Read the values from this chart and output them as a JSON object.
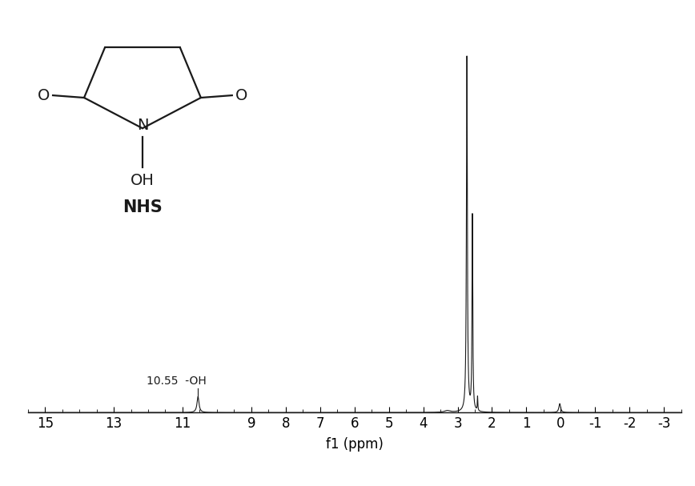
{
  "xlim": [
    15.5,
    -3.5
  ],
  "ylim": [
    -0.07,
    1.12
  ],
  "xlabel": "f1 (ppm)",
  "xticks": [
    15,
    13,
    11,
    9,
    8,
    7,
    6,
    5,
    4,
    3,
    2,
    1,
    0,
    -1,
    -2,
    -3
  ],
  "xtick_labels": [
    "15",
    "13",
    "11",
    "9",
    "8",
    "7",
    "6",
    "5",
    "4",
    "3",
    "2",
    "1",
    "0",
    "-1",
    "-2",
    "-3"
  ],
  "background_color": "#ffffff",
  "line_color": "#1a1a1a",
  "annotation_text": "10.55  -OH",
  "mol_axes": [
    0.055,
    0.52,
    0.3,
    0.45
  ],
  "mol_xlim": [
    0,
    10
  ],
  "mol_ylim": [
    0,
    10
  ]
}
